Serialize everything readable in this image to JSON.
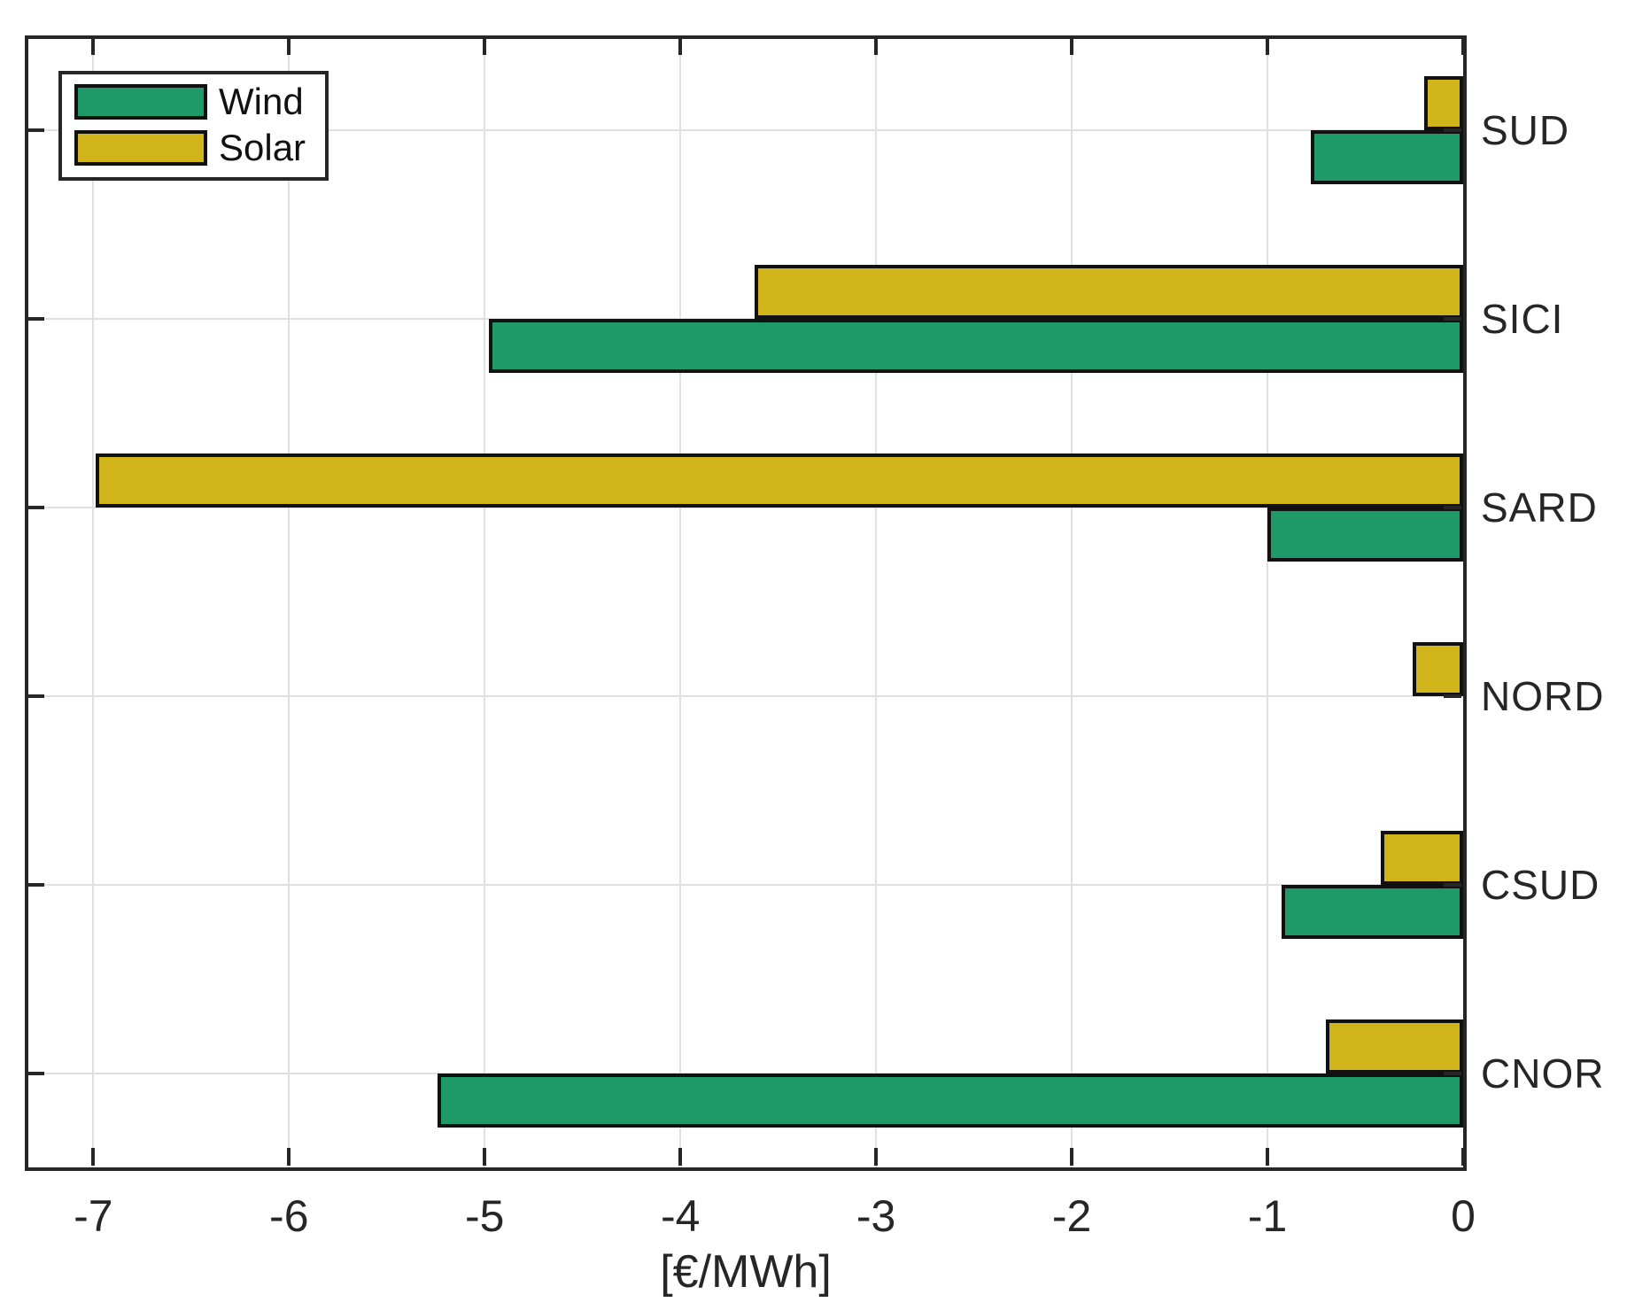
{
  "chart_data": {
    "type": "bar",
    "orientation": "horizontal",
    "category_order": "top-to-bottom",
    "categories": [
      "SUD",
      "SICI",
      "SARD",
      "NORD",
      "CSUD",
      "CNOR"
    ],
    "series": [
      {
        "name": "Wind",
        "color": "#1E9A69",
        "values": [
          -0.78,
          -4.98,
          -1.0,
          0,
          -0.93,
          -5.24
        ]
      },
      {
        "name": "Solar",
        "color": "#D0B41A",
        "values": [
          -0.2,
          -3.62,
          -6.99,
          -0.26,
          -0.42,
          -0.7
        ]
      }
    ],
    "xlabel": "[€/MWh]",
    "x_ticks": [
      -7,
      -6,
      -5,
      -4,
      -3,
      -2,
      -1,
      0
    ],
    "x_tick_labels": [
      "-7",
      "-6",
      "-5",
      "-4",
      "-3",
      "-2",
      "-1",
      "0"
    ],
    "xlim": [
      -7.35,
      0
    ],
    "grid": true,
    "legend_position": "top-left",
    "legend_entries": [
      "Wind",
      "Solar"
    ]
  },
  "colors": {
    "axis": "#262626",
    "grid": "#e0e0e0",
    "bar_edge": "#111111",
    "background": "#ffffff",
    "text": "#262626"
  }
}
